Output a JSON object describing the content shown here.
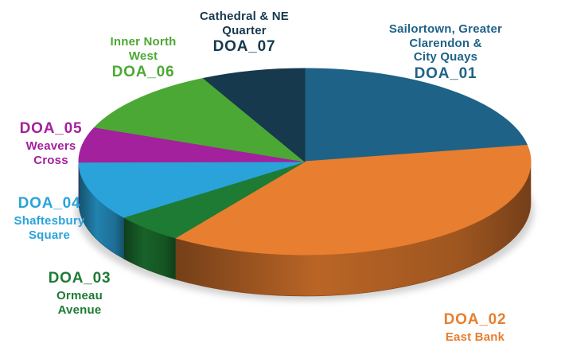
{
  "chart_data": {
    "type": "pie",
    "style": "3d",
    "start_angle_deg": 0,
    "direction": "clockwise",
    "values_are_estimated_percent": true,
    "slices": [
      {
        "code": "DOA_01",
        "name": "Sailortown, Greater Clarendon & City Quays",
        "label_name_lines": "Sailortown, Greater Clarendon &\nCity Quays",
        "value_pct": 22.2,
        "color": "#1F6287"
      },
      {
        "code": "DOA_02",
        "name": "East Bank",
        "label_name_lines": "East Bank",
        "value_pct": 37.5,
        "color": "#E87E2F"
      },
      {
        "code": "DOA_03",
        "name": "Ormeau Avenue",
        "label_name_lines": "Ormeau\nAvenue",
        "value_pct": 5.1,
        "color": "#1E7B34"
      },
      {
        "code": "DOA_04",
        "name": "Shaftesbury Square",
        "label_name_lines": "Shaftesbury\nSquare",
        "value_pct": 10.1,
        "color": "#2AA3DB"
      },
      {
        "code": "DOA_05",
        "name": "Weavers Cross",
        "label_name_lines": "Weavers\nCross",
        "value_pct": 6.1,
        "color": "#A3219C"
      },
      {
        "code": "DOA_06",
        "name": "Inner North West",
        "label_name_lines": "Inner North\nWest",
        "value_pct": 11.6,
        "color": "#4CA835"
      },
      {
        "code": "DOA_07",
        "name": "Cathedral & NE Quarter",
        "label_name_lines": "Cathedral & NE\nQuarter",
        "value_pct": 7.4,
        "color": "#17394E"
      }
    ]
  }
}
